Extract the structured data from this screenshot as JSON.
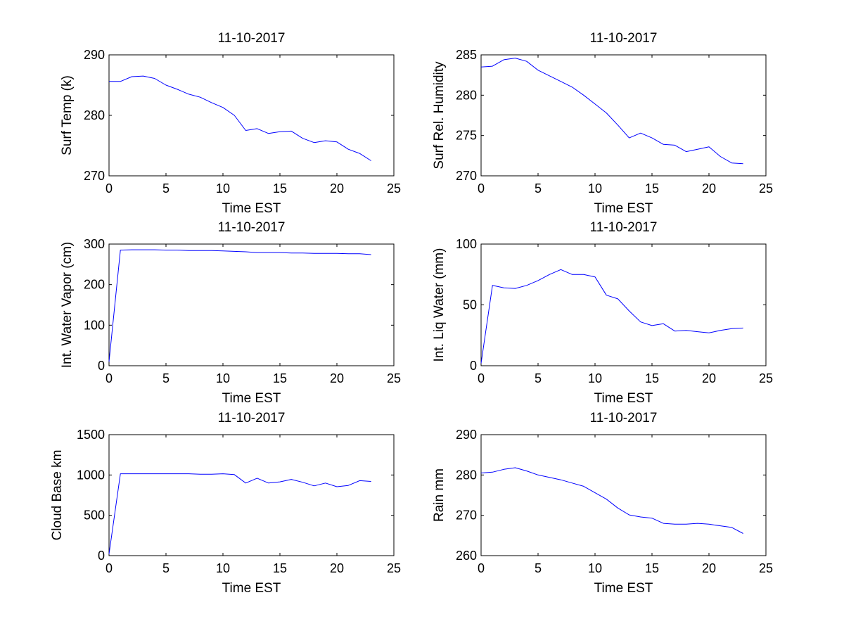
{
  "chart_data": [
    {
      "type": "line",
      "title": "11-10-2017",
      "xlabel": "Time EST",
      "ylabel": "Surf Temp (k)",
      "xlim": [
        0,
        25
      ],
      "ylim": [
        270,
        290
      ],
      "xticks": [
        0,
        5,
        10,
        15,
        20,
        25
      ],
      "yticks": [
        270,
        280,
        290
      ],
      "grid": false,
      "color": "#0000ff",
      "x": [
        0,
        1,
        2,
        3,
        4,
        5,
        6,
        7,
        8,
        9,
        10,
        11,
        12,
        13,
        14,
        15,
        16,
        17,
        18,
        19,
        20,
        21,
        22,
        23
      ],
      "y": [
        285.6,
        285.6,
        286.4,
        286.5,
        286.1,
        285.0,
        284.3,
        283.5,
        283.0,
        282.1,
        281.3,
        280.0,
        277.5,
        277.8,
        277.0,
        277.3,
        277.4,
        276.2,
        275.5,
        275.8,
        275.6,
        274.4,
        273.7,
        272.5
      ]
    },
    {
      "type": "line",
      "title": "11-10-2017",
      "xlabel": "Time EST",
      "ylabel": "Surf Rel. Humidity",
      "xlim": [
        0,
        25
      ],
      "ylim": [
        270,
        285
      ],
      "xticks": [
        0,
        5,
        10,
        15,
        20,
        25
      ],
      "yticks": [
        270,
        275,
        280,
        285
      ],
      "grid": false,
      "color": "#0000ff",
      "x": [
        0,
        1,
        2,
        3,
        4,
        5,
        6,
        7,
        8,
        9,
        10,
        11,
        12,
        13,
        14,
        15,
        16,
        17,
        18,
        19,
        20,
        21,
        22,
        23
      ],
      "y": [
        283.5,
        283.6,
        284.4,
        284.6,
        284.2,
        283.1,
        282.4,
        281.7,
        281.0,
        280.0,
        278.9,
        277.8,
        276.3,
        274.7,
        275.3,
        274.7,
        273.9,
        273.8,
        273.0,
        273.3,
        273.6,
        272.4,
        271.6,
        271.5
      ]
    },
    {
      "type": "line",
      "title": "11-10-2017",
      "xlabel": "Time EST",
      "ylabel": "Int. Water Vapor (cm)",
      "xlim": [
        0,
        25
      ],
      "ylim": [
        0,
        300
      ],
      "xticks": [
        0,
        5,
        10,
        15,
        20,
        25
      ],
      "yticks": [
        0,
        100,
        200,
        300
      ],
      "grid": false,
      "color": "#0000ff",
      "x": [
        0,
        1,
        2,
        3,
        4,
        5,
        6,
        7,
        8,
        9,
        10,
        11,
        12,
        13,
        14,
        15,
        16,
        17,
        18,
        19,
        20,
        21,
        22,
        23
      ],
      "y": [
        10,
        285,
        286,
        286,
        286,
        285,
        285,
        284,
        284,
        284,
        283,
        282,
        281,
        279,
        279,
        279,
        278,
        278,
        277,
        277,
        277,
        276,
        276,
        274
      ]
    },
    {
      "type": "line",
      "title": "11-10-2017",
      "xlabel": "Time EST",
      "ylabel": "Int. Liq Water (mm)",
      "xlim": [
        0,
        25
      ],
      "ylim": [
        0,
        100
      ],
      "xticks": [
        0,
        5,
        10,
        15,
        20,
        25
      ],
      "yticks": [
        0,
        50,
        100
      ],
      "grid": false,
      "color": "#0000ff",
      "x": [
        0,
        1,
        2,
        3,
        4,
        5,
        6,
        7,
        8,
        9,
        10,
        11,
        12,
        13,
        14,
        15,
        16,
        17,
        18,
        19,
        20,
        21,
        22,
        23
      ],
      "y": [
        2,
        66,
        64,
        63.5,
        66,
        70,
        75,
        79,
        75,
        75,
        73,
        58,
        55,
        45,
        36,
        33,
        34.5,
        28.5,
        29,
        28,
        27,
        29,
        30.5,
        31
      ]
    },
    {
      "type": "line",
      "title": "11-10-2017",
      "xlabel": "Time EST",
      "ylabel": "Cloud Base km",
      "xlim": [
        0,
        25
      ],
      "ylim": [
        0,
        1500
      ],
      "xticks": [
        0,
        5,
        10,
        15,
        20,
        25
      ],
      "yticks": [
        0,
        500,
        1000,
        1500
      ],
      "grid": false,
      "color": "#0000ff",
      "x": [
        0,
        1,
        2,
        3,
        4,
        5,
        6,
        7,
        8,
        9,
        10,
        11,
        12,
        13,
        14,
        15,
        16,
        17,
        18,
        19,
        20,
        21,
        22,
        23
      ],
      "y": [
        20,
        1015,
        1015,
        1015,
        1015,
        1015,
        1015,
        1015,
        1010,
        1010,
        1015,
        1005,
        900,
        960,
        900,
        915,
        945,
        910,
        865,
        900,
        855,
        870,
        930,
        920
      ]
    },
    {
      "type": "line",
      "title": "11-10-2017",
      "xlabel": "Time EST",
      "ylabel": "Rain mm",
      "xlim": [
        0,
        25
      ],
      "ylim": [
        260,
        290
      ],
      "xticks": [
        0,
        5,
        10,
        15,
        20,
        25
      ],
      "yticks": [
        260,
        270,
        280,
        290
      ],
      "grid": false,
      "color": "#0000ff",
      "x": [
        0,
        1,
        2,
        3,
        4,
        5,
        6,
        7,
        8,
        9,
        10,
        11,
        12,
        13,
        14,
        15,
        16,
        17,
        18,
        19,
        20,
        21,
        22,
        23
      ],
      "y": [
        280.5,
        280.7,
        281.4,
        281.8,
        281.0,
        280.0,
        279.4,
        278.8,
        278.0,
        277.2,
        275.6,
        274.0,
        271.8,
        270.1,
        269.6,
        269.3,
        268.0,
        267.8,
        267.8,
        268.0,
        267.8,
        267.4,
        267.0,
        265.5
      ]
    }
  ]
}
